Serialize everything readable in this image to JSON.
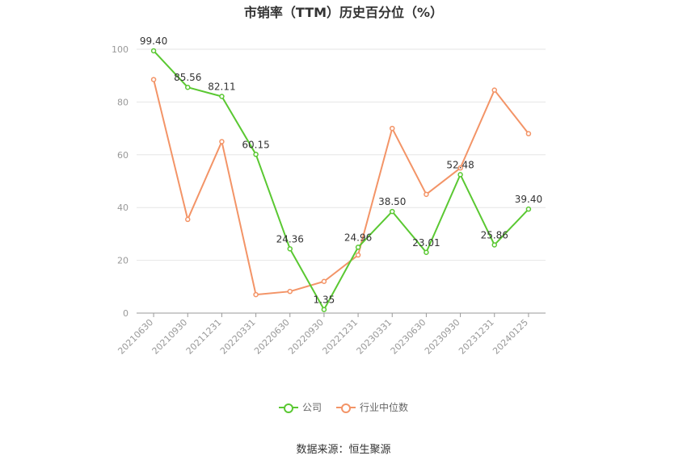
{
  "chart_data": {
    "type": "line",
    "title": "市销率（TTM）历史百分位（%）",
    "categories": [
      "20210630",
      "20210930",
      "20211231",
      "20220331",
      "20220630",
      "20220930",
      "20221231",
      "20230331",
      "20230630",
      "20230930",
      "20231231",
      "20240125"
    ],
    "series": [
      {
        "name": "公司",
        "color": "#5ac832",
        "values": [
          99.4,
          85.56,
          82.11,
          60.15,
          24.36,
          1.35,
          24.96,
          38.5,
          23.01,
          52.48,
          25.86,
          39.4
        ],
        "labels": [
          "99.40",
          "85.56",
          "82.11",
          "60.15",
          "24.36",
          "1.35",
          "24.96",
          "38.50",
          "23.01",
          "52.48",
          "25.86",
          "39.40"
        ]
      },
      {
        "name": "行业中位数",
        "color": "#f39467",
        "values": [
          88.5,
          35.5,
          65,
          7,
          8.2,
          12,
          22,
          70,
          45,
          55,
          84.5,
          68
        ]
      }
    ],
    "y_ticks": [
      "0",
      "20",
      "40",
      "60",
      "80",
      "100"
    ],
    "ylim": [
      0,
      100
    ],
    "grid": true,
    "legend_position": "bottom-center"
  },
  "source": "数据来源：恒生聚源"
}
